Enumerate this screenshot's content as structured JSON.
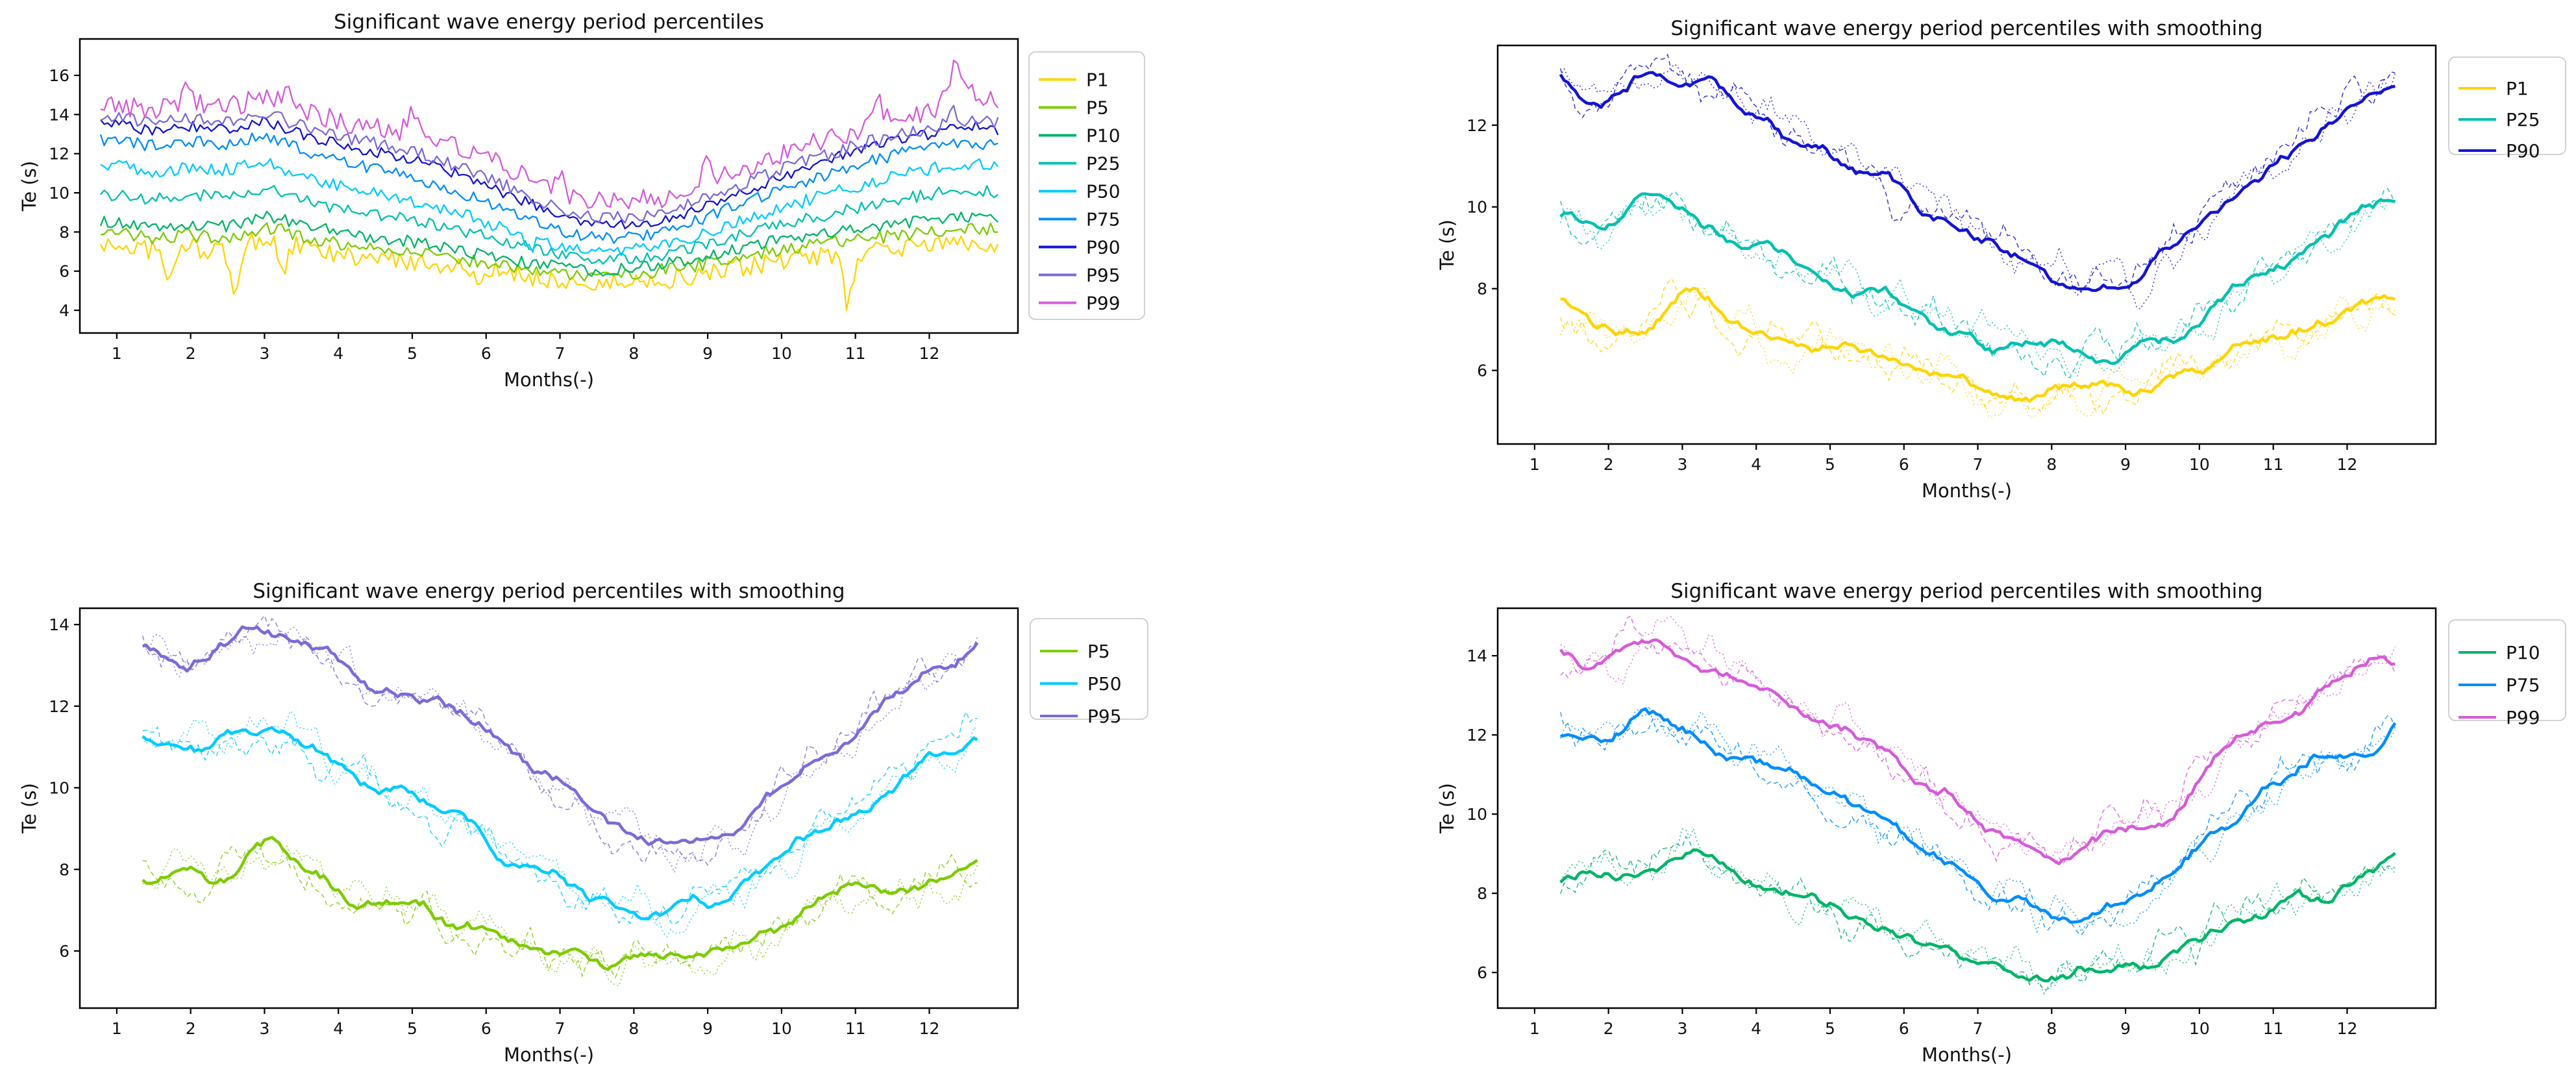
{
  "figure": {
    "background": "#ffffff"
  },
  "chart_data": [
    {
      "id": "top-left",
      "type": "line",
      "title": "Significant wave energy period percentiles",
      "xlabel": "Months(-)",
      "ylabel": "Te (s)",
      "smoothing": false,
      "legend_position": "outside-right",
      "grid": false,
      "xlim": [
        0.5,
        13.2
      ],
      "ylim": [
        2.84,
        17.86
      ],
      "xticks": [
        1,
        2,
        3,
        4,
        5,
        6,
        7,
        8,
        9,
        10,
        11,
        12
      ],
      "yticks": [
        4,
        6,
        8,
        10,
        12,
        14,
        16
      ],
      "x_range": [
        0.78,
        12.95
      ],
      "control_months": [
        1,
        1.5,
        2,
        2.5,
        3,
        3.5,
        4,
        4.5,
        5,
        5.5,
        6,
        6.5,
        7,
        7.5,
        8,
        8.5,
        9,
        9.5,
        10,
        10.5,
        11,
        11.5,
        12,
        12.5,
        12.95
      ],
      "series": [
        {
          "name": "P1",
          "color": "#FFD400",
          "noise": 0.5,
          "values": [
            7.3,
            7.1,
            7.2,
            7.0,
            7.6,
            7.2,
            6.8,
            6.6,
            6.5,
            6.3,
            6.0,
            5.8,
            5.5,
            5.3,
            5.5,
            5.6,
            5.8,
            6.2,
            6.5,
            6.8,
            7.0,
            7.2,
            7.3,
            7.5,
            7.4
          ],
          "spikes": [
            [
              1.7,
              -1.8,
              0.06
            ],
            [
              2.6,
              -2.0,
              0.06
            ],
            [
              3.25,
              -1.6,
              0.05
            ],
            [
              5.9,
              -1.3,
              0.05
            ],
            [
              10.9,
              -2.6,
              0.07
            ]
          ]
        },
        {
          "name": "P5",
          "color": "#7DCB02",
          "noise": 0.34,
          "values": [
            7.9,
            7.7,
            7.8,
            7.7,
            8.2,
            7.8,
            7.4,
            7.2,
            7.0,
            6.8,
            6.4,
            6.2,
            5.9,
            5.7,
            5.9,
            6.1,
            6.4,
            6.8,
            7.1,
            7.4,
            7.6,
            7.8,
            8.0,
            8.2,
            8.1
          ],
          "spikes": []
        },
        {
          "name": "P10",
          "color": "#00B468",
          "noise": 0.3,
          "values": [
            8.5,
            8.3,
            8.4,
            8.3,
            8.8,
            8.4,
            8.0,
            7.7,
            7.5,
            7.2,
            6.8,
            6.5,
            6.2,
            6.0,
            6.2,
            6.4,
            6.8,
            7.2,
            7.6,
            7.9,
            8.2,
            8.4,
            8.6,
            8.8,
            8.7
          ],
          "spikes": []
        },
        {
          "name": "P25",
          "color": "#00C0B0",
          "noise": 0.3,
          "values": [
            9.9,
            9.7,
            9.9,
            9.8,
            10.2,
            9.7,
            9.2,
            8.9,
            8.6,
            8.2,
            7.8,
            7.3,
            6.9,
            6.6,
            6.7,
            6.9,
            7.4,
            7.9,
            8.4,
            8.8,
            9.2,
            9.6,
            9.9,
            10.2,
            10.0
          ],
          "spikes": []
        },
        {
          "name": "P50",
          "color": "#00CBFF",
          "noise": 0.32,
          "values": [
            11.4,
            11.1,
            11.3,
            11.2,
            11.5,
            10.9,
            10.4,
            10.0,
            9.6,
            9.1,
            8.5,
            7.9,
            7.3,
            7.0,
            7.1,
            7.4,
            8.0,
            8.6,
            9.2,
            9.8,
            10.3,
            10.8,
            11.2,
            11.5,
            11.3
          ],
          "spikes": [
            [
              6.6,
              -0.8,
              0.05
            ]
          ]
        },
        {
          "name": "P75",
          "color": "#008DFB",
          "noise": 0.3,
          "values": [
            12.7,
            12.4,
            12.6,
            12.5,
            12.8,
            12.2,
            11.7,
            11.2,
            10.8,
            10.2,
            9.5,
            8.8,
            8.1,
            7.7,
            7.8,
            8.1,
            8.8,
            9.5,
            10.2,
            10.8,
            11.4,
            11.9,
            12.3,
            12.6,
            12.4
          ],
          "spikes": []
        },
        {
          "name": "P90",
          "color": "#1414D2",
          "noise": 0.28,
          "values": [
            13.5,
            13.2,
            13.4,
            13.3,
            13.6,
            13.0,
            12.5,
            12.1,
            11.7,
            11.1,
            10.4,
            9.6,
            8.9,
            8.3,
            8.4,
            8.7,
            9.4,
            10.1,
            10.8,
            11.5,
            12.1,
            12.6,
            13.0,
            13.4,
            13.2
          ],
          "spikes": []
        },
        {
          "name": "P95",
          "color": "#7D6AD9",
          "noise": 0.33,
          "values": [
            13.9,
            13.6,
            13.8,
            13.7,
            14.0,
            13.4,
            12.9,
            12.5,
            12.1,
            11.5,
            10.8,
            10.0,
            9.2,
            8.7,
            8.8,
            9.1,
            9.8,
            10.5,
            11.2,
            11.8,
            12.4,
            12.9,
            13.3,
            13.7,
            13.6
          ],
          "spikes": [
            [
              12.3,
              0.8,
              0.06
            ]
          ]
        },
        {
          "name": "P99",
          "color": "#D65BD9",
          "noise": 0.55,
          "values": [
            14.5,
            14.3,
            14.5,
            14.4,
            14.8,
            14.2,
            13.7,
            13.3,
            13.0,
            12.4,
            11.7,
            10.9,
            10.1,
            9.5,
            9.6,
            9.9,
            10.6,
            11.3,
            12.0,
            12.6,
            13.2,
            13.7,
            14.2,
            15.0,
            14.6
          ],
          "spikes": [
            [
              1.95,
              1.1,
              0.06
            ],
            [
              3.3,
              0.9,
              0.05
            ],
            [
              5.0,
              1.4,
              0.06
            ],
            [
              7.0,
              1.0,
              0.05
            ],
            [
              9.0,
              1.2,
              0.06
            ],
            [
              11.3,
              1.3,
              0.06
            ],
            [
              12.35,
              1.9,
              0.08
            ]
          ]
        }
      ]
    },
    {
      "id": "top-right",
      "type": "line",
      "title": "Significant wave energy period percentiles with smoothing",
      "xlabel": "Months(-)",
      "ylabel": "Te (s)",
      "smoothing": true,
      "legend_position": "outside-right",
      "grid": false,
      "xlim": [
        0.5,
        13.2
      ],
      "ylim": [
        4.2,
        13.95
      ],
      "xticks": [
        1,
        2,
        3,
        4,
        5,
        6,
        7,
        8,
        9,
        10,
        11,
        12
      ],
      "yticks": [
        6,
        8,
        10,
        12
      ],
      "x_range": [
        1.35,
        12.65
      ],
      "control_months": [
        1.35,
        1.9,
        2.45,
        3.0,
        3.55,
        4.1,
        4.65,
        5.2,
        5.75,
        6.3,
        6.85,
        7.4,
        7.95,
        8.5,
        9.05,
        9.6,
        10.15,
        10.7,
        11.25,
        11.8,
        12.35,
        12.65
      ],
      "series": [
        {
          "name": "P1",
          "color": "#FFD400",
          "noise": 0.4,
          "values": [
            7.35,
            7.0,
            6.9,
            7.9,
            7.3,
            6.7,
            6.7,
            6.6,
            6.3,
            5.9,
            5.6,
            5.35,
            5.3,
            5.5,
            5.6,
            5.9,
            6.2,
            6.6,
            6.9,
            7.2,
            7.65,
            7.55
          ],
          "spikes": []
        },
        {
          "name": "P25",
          "color": "#00C0B0",
          "noise": 0.4,
          "values": [
            9.9,
            9.5,
            10.1,
            9.9,
            9.4,
            9.0,
            8.6,
            8.3,
            7.8,
            7.3,
            6.9,
            6.6,
            6.5,
            6.4,
            6.45,
            6.9,
            7.5,
            8.1,
            8.7,
            9.3,
            10.1,
            10.25
          ],
          "spikes": []
        },
        {
          "name": "P90",
          "color": "#1414D2",
          "noise": 0.4,
          "values": [
            13.2,
            12.5,
            13.1,
            13.35,
            12.7,
            12.1,
            11.6,
            11.2,
            10.7,
            10.1,
            9.5,
            8.9,
            8.3,
            8.1,
            8.2,
            8.9,
            9.9,
            10.6,
            11.3,
            12.2,
            12.9,
            13.15
          ],
          "spikes": []
        }
      ]
    },
    {
      "id": "bottom-left",
      "type": "line",
      "title": "Significant wave energy period percentiles with smoothing",
      "xlabel": "Months(-)",
      "ylabel": "Te (s)",
      "smoothing": true,
      "legend_position": "outside-right",
      "grid": false,
      "xlim": [
        0.5,
        13.2
      ],
      "ylim": [
        4.6,
        14.4
      ],
      "xticks": [
        1,
        2,
        3,
        4,
        5,
        6,
        7,
        8,
        9,
        10,
        11,
        12
      ],
      "yticks": [
        6,
        8,
        10,
        12,
        14
      ],
      "x_range": [
        1.35,
        12.65
      ],
      "control_months": [
        1.35,
        1.9,
        2.45,
        3.0,
        3.55,
        4.1,
        4.65,
        5.2,
        5.75,
        6.3,
        6.85,
        7.4,
        7.95,
        8.5,
        9.05,
        9.6,
        10.15,
        10.7,
        11.25,
        11.8,
        12.35,
        12.65
      ],
      "series": [
        {
          "name": "P5",
          "color": "#7DCB02",
          "noise": 0.4,
          "values": [
            7.75,
            7.9,
            7.75,
            8.5,
            8.0,
            7.4,
            7.2,
            7.0,
            6.6,
            6.3,
            6.0,
            5.8,
            5.75,
            6.0,
            6.0,
            6.3,
            6.8,
            7.2,
            7.5,
            7.4,
            8.0,
            8.1
          ],
          "spikes": []
        },
        {
          "name": "P50",
          "color": "#00CBFF",
          "noise": 0.4,
          "values": [
            11.3,
            11.0,
            11.2,
            11.45,
            10.9,
            10.4,
            10.0,
            9.6,
            9.0,
            8.4,
            7.8,
            7.3,
            7.0,
            6.9,
            7.1,
            7.7,
            8.4,
            9.1,
            9.8,
            10.6,
            10.9,
            11.35
          ],
          "spikes": []
        },
        {
          "name": "P95",
          "color": "#7D6AD9",
          "noise": 0.4,
          "values": [
            13.6,
            13.1,
            13.5,
            13.75,
            13.5,
            12.9,
            12.3,
            12.3,
            11.7,
            10.9,
            10.2,
            9.4,
            8.8,
            8.5,
            8.6,
            9.2,
            10.1,
            10.9,
            11.7,
            12.5,
            13.2,
            13.55
          ],
          "spikes": []
        }
      ]
    },
    {
      "id": "bottom-right",
      "type": "line",
      "title": "Significant wave energy period percentiles with smoothing",
      "xlabel": "Months(-)",
      "ylabel": "Te (s)",
      "smoothing": true,
      "legend_position": "outside-right",
      "grid": false,
      "xlim": [
        0.5,
        13.2
      ],
      "ylim": [
        5.1,
        15.2
      ],
      "xticks": [
        1,
        2,
        3,
        4,
        5,
        6,
        7,
        8,
        9,
        10,
        11,
        12
      ],
      "yticks": [
        6,
        8,
        10,
        12,
        14
      ],
      "x_range": [
        1.35,
        12.65
      ],
      "control_months": [
        1.35,
        1.9,
        2.45,
        3.0,
        3.55,
        4.1,
        4.65,
        5.2,
        5.75,
        6.3,
        6.85,
        7.4,
        7.95,
        8.5,
        9.05,
        9.6,
        10.15,
        10.7,
        11.25,
        11.8,
        12.35,
        12.65
      ],
      "series": [
        {
          "name": "P10",
          "color": "#00B468",
          "noise": 0.4,
          "values": [
            8.45,
            8.6,
            8.5,
            9.1,
            8.7,
            8.1,
            7.8,
            7.5,
            7.1,
            6.7,
            6.35,
            6.1,
            5.95,
            6.1,
            6.15,
            6.5,
            7.0,
            7.5,
            7.9,
            7.9,
            8.6,
            8.85
          ],
          "spikes": []
        },
        {
          "name": "P75",
          "color": "#008DFB",
          "noise": 0.4,
          "values": [
            12.2,
            11.9,
            12.5,
            12.1,
            11.6,
            11.1,
            10.8,
            10.3,
            9.7,
            9.0,
            8.4,
            7.8,
            7.5,
            7.4,
            7.7,
            8.5,
            9.4,
            10.2,
            11.0,
            11.6,
            11.5,
            12.35
          ],
          "spikes": []
        },
        {
          "name": "P99",
          "color": "#D65BD9",
          "noise": 0.4,
          "values": [
            14.15,
            13.7,
            14.3,
            14.0,
            13.6,
            13.0,
            12.55,
            12.3,
            11.5,
            10.7,
            10.1,
            9.4,
            9.1,
            9.3,
            9.8,
            10.0,
            11.2,
            12.2,
            12.6,
            13.3,
            13.9,
            13.95
          ],
          "spikes": []
        }
      ]
    }
  ]
}
